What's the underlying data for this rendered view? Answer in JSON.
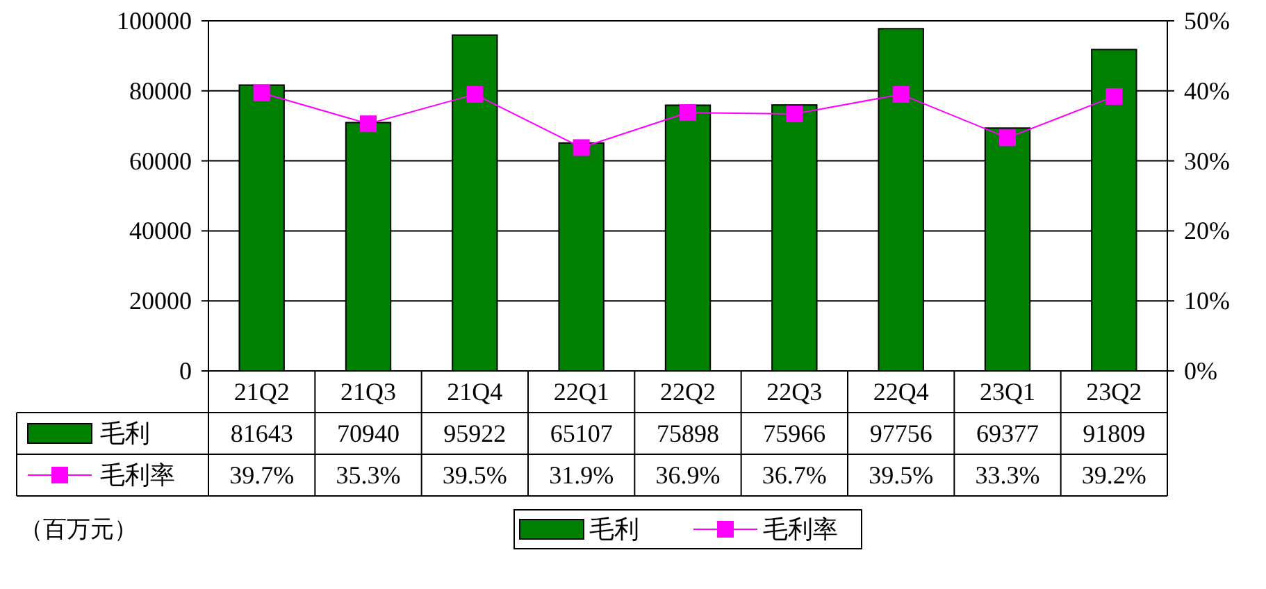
{
  "chart_data": {
    "type": "bar",
    "categories": [
      "21Q2",
      "21Q3",
      "21Q4",
      "22Q1",
      "22Q2",
      "22Q3",
      "22Q4",
      "23Q1",
      "23Q2"
    ],
    "series": [
      {
        "name": "毛利",
        "color": "#008000",
        "values": [
          81643,
          70940,
          95922,
          65107,
          75898,
          75966,
          97756,
          69377,
          91809
        ]
      },
      {
        "name": "毛利率",
        "type": "line",
        "axis": "y2",
        "color": "#ff00ff",
        "values": [
          39.7,
          35.3,
          39.5,
          31.9,
          36.9,
          36.7,
          39.5,
          33.3,
          39.2
        ],
        "value_labels": [
          "39.7%",
          "35.3%",
          "39.5%",
          "31.9%",
          "36.9%",
          "36.7%",
          "39.5%",
          "33.3%",
          "39.2%"
        ]
      }
    ],
    "ylim": [
      0,
      100000
    ],
    "yticks": [
      0,
      20000,
      40000,
      60000,
      80000,
      100000
    ],
    "y2lim": [
      0,
      50
    ],
    "y2ticks": [
      {
        "value": 0,
        "label": "0%"
      },
      {
        "value": 10,
        "label": "10%"
      },
      {
        "value": 20,
        "label": "20%"
      },
      {
        "value": 30,
        "label": "30%"
      },
      {
        "value": 40,
        "label": "40%"
      },
      {
        "value": 50,
        "label": "50%"
      }
    ],
    "grid": "y",
    "legend": "bottom",
    "marker": "square",
    "data_labels": true,
    "annotations": [
      "（百万元）"
    ]
  }
}
